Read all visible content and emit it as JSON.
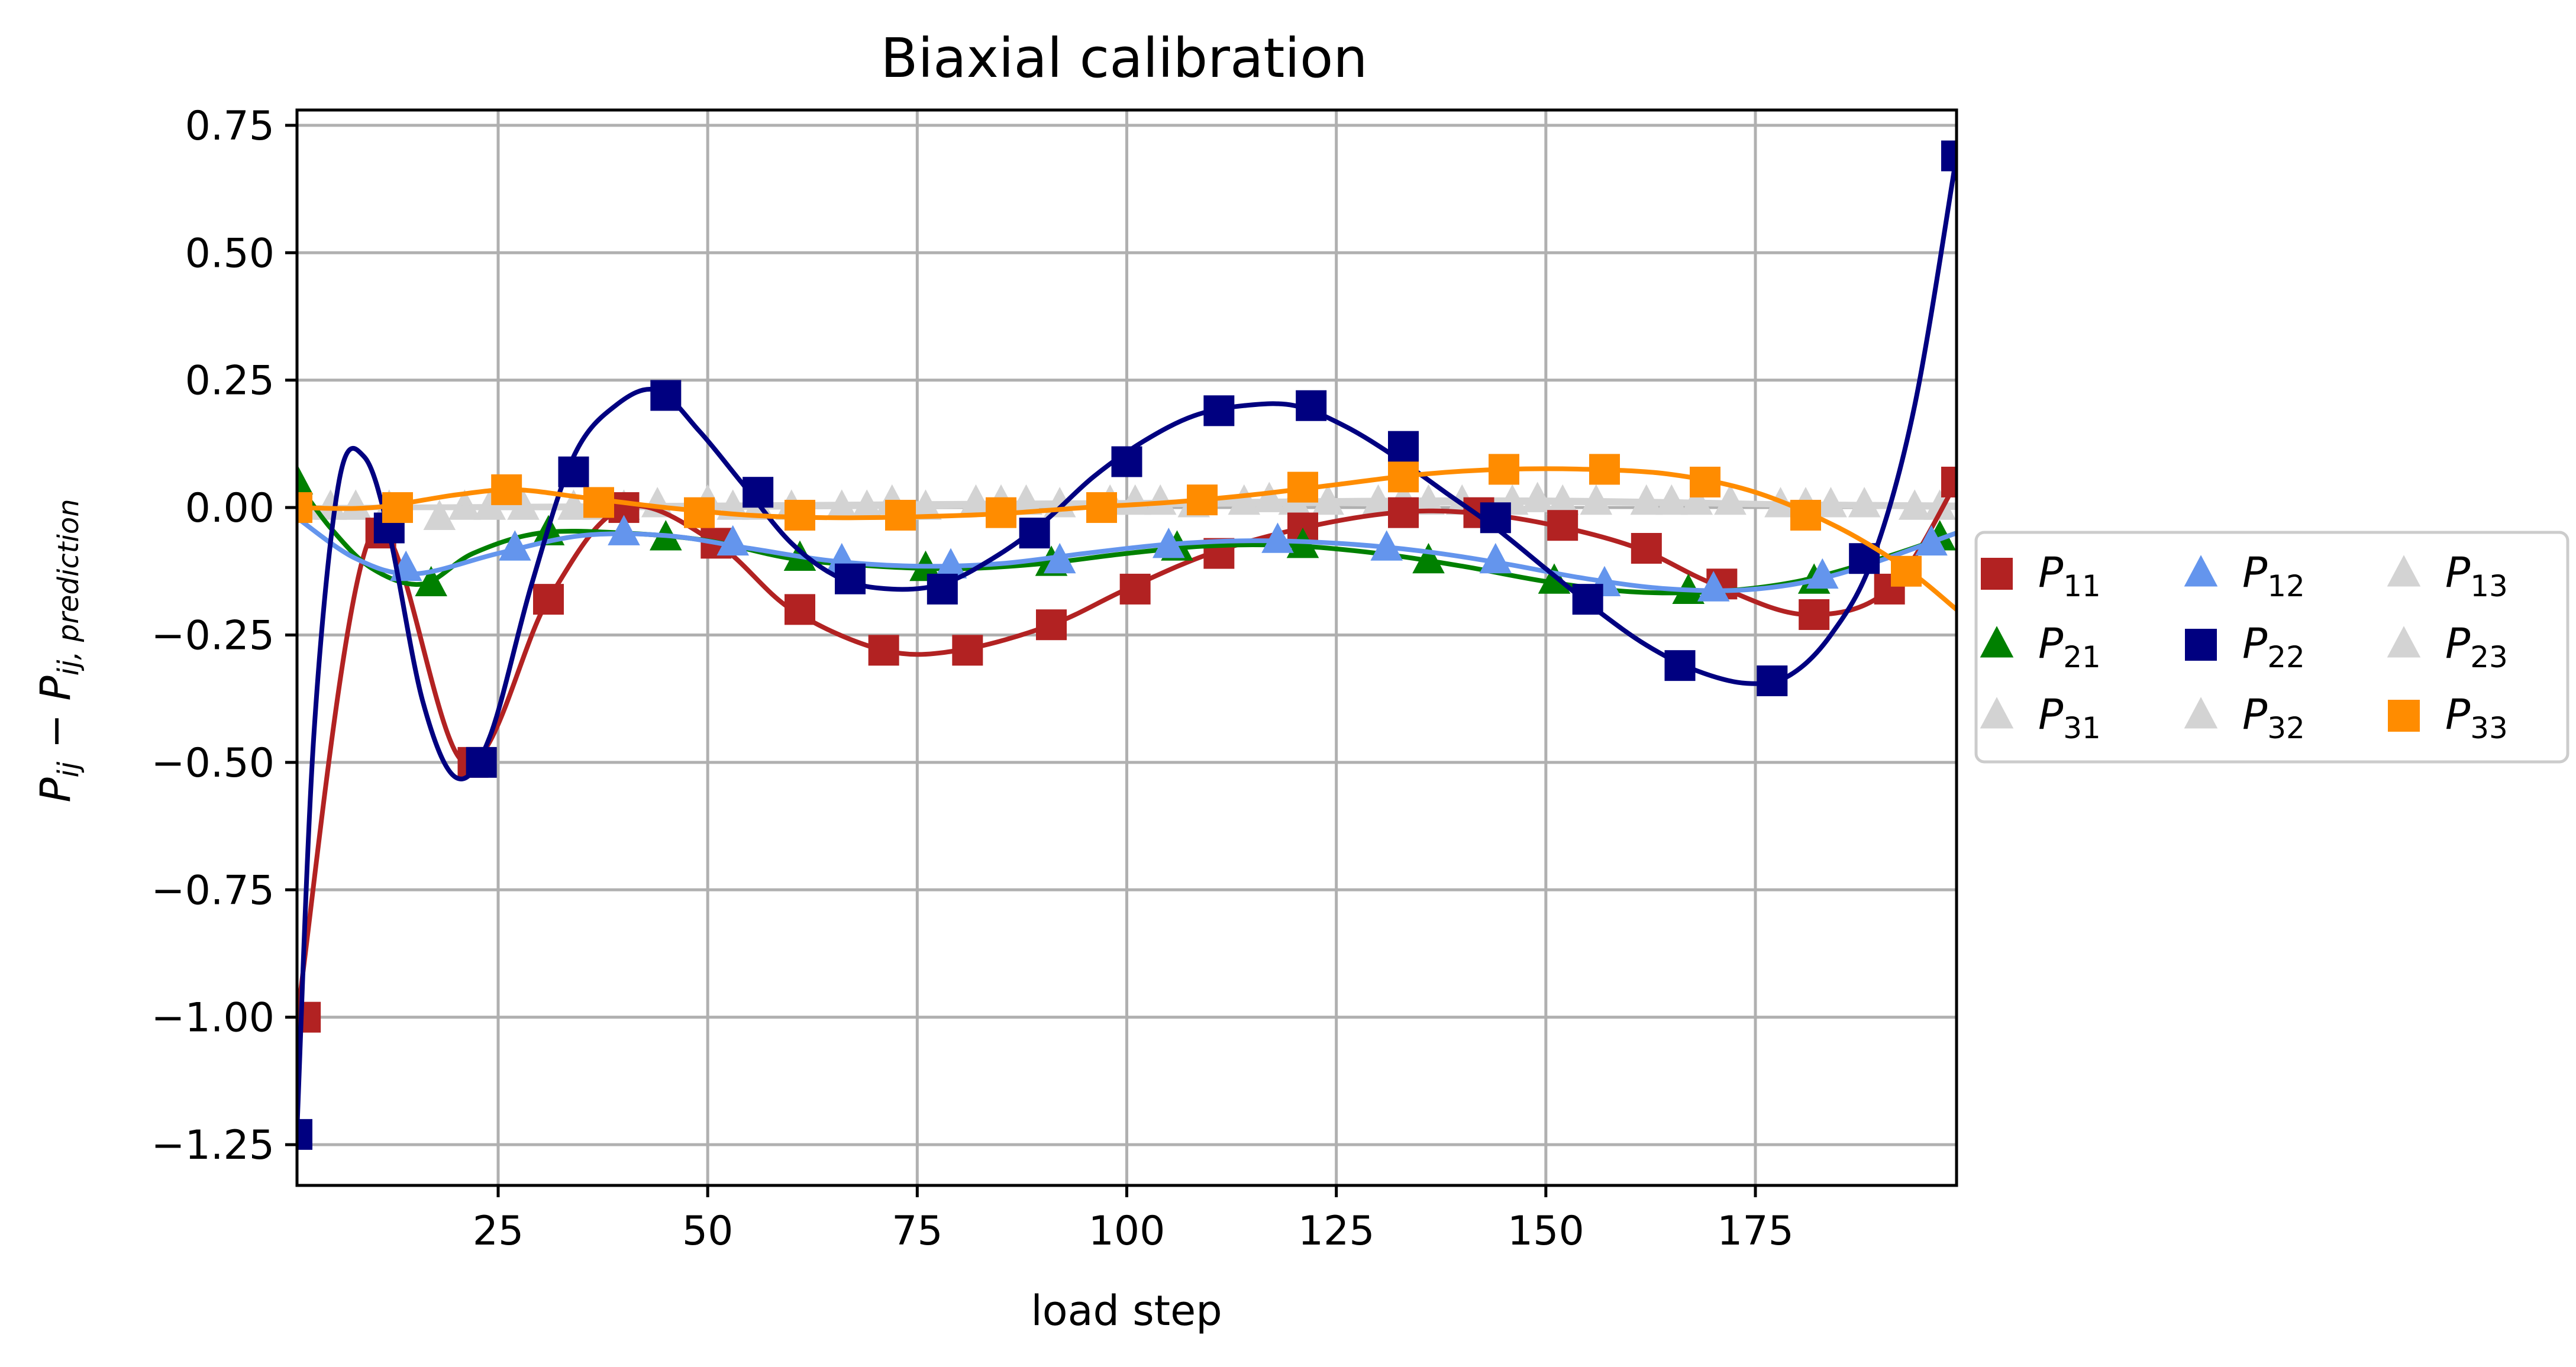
{
  "chart_data": {
    "type": "line",
    "title": "Biaxial calibration",
    "xlabel": "load step",
    "ylabel_base": "P",
    "ylabel_sub1": "ij",
    "ylabel_minus": " − ",
    "ylabel_sub2": "ij, prediction",
    "xlim": [
      1,
      199
    ],
    "ylim": [
      -1.33,
      0.78
    ],
    "xticks": [
      25,
      50,
      75,
      100,
      125,
      150,
      175
    ],
    "yticks": [
      0.75,
      0.5,
      0.25,
      0.0,
      -0.25,
      -0.5,
      -0.75,
      -1.0,
      -1.25
    ],
    "xtick_labels": [
      "25",
      "50",
      "75",
      "100",
      "125",
      "150",
      "175"
    ],
    "ytick_labels": [
      "0.75",
      "0.50",
      "0.25",
      "0.00",
      "−0.25",
      "−0.50",
      "−0.75",
      "−1.00",
      "−1.25"
    ],
    "grid": true,
    "legend_placement": "outside-right",
    "series": [
      {
        "name": "P",
        "sub": "11",
        "color": "#b22222",
        "marker": "square",
        "x": [
          1,
          10,
          21,
          31,
          40,
          51,
          60,
          71,
          80,
          91,
          100,
          110,
          121,
          132,
          141,
          151,
          161,
          170,
          181,
          191,
          199
        ],
        "y": [
          -1.0,
          -0.05,
          -0.5,
          -0.18,
          0.0,
          -0.07,
          -0.2,
          -0.28,
          -0.28,
          -0.23,
          -0.16,
          -0.09,
          -0.04,
          -0.01,
          -0.01,
          -0.035,
          -0.08,
          -0.15,
          -0.21,
          -0.16,
          0.05
        ],
        "markers_x": [
          2,
          11,
          22,
          31,
          40,
          51,
          61,
          71,
          81,
          91,
          101,
          111,
          121,
          133,
          142,
          152,
          162,
          171,
          182,
          191,
          199
        ],
        "markers_y": [
          -1.0,
          -0.05,
          -0.5,
          -0.18,
          0.0,
          -0.07,
          -0.2,
          -0.28,
          -0.28,
          -0.23,
          -0.16,
          -0.09,
          -0.04,
          -0.01,
          -0.01,
          -0.035,
          -0.08,
          -0.15,
          -0.21,
          -0.16,
          0.05
        ]
      },
      {
        "name": "P",
        "sub": "21",
        "color": "#008000",
        "marker": "triangle",
        "x": [
          1,
          5,
          10,
          16,
          22,
          30,
          40,
          50,
          60,
          70,
          80,
          90,
          100,
          110,
          120,
          130,
          140,
          150,
          160,
          170,
          180,
          190,
          199
        ],
        "y": [
          0.05,
          -0.04,
          -0.12,
          -0.15,
          -0.09,
          -0.05,
          -0.05,
          -0.065,
          -0.1,
          -0.115,
          -0.12,
          -0.11,
          -0.09,
          -0.075,
          -0.075,
          -0.09,
          -0.115,
          -0.145,
          -0.165,
          -0.165,
          -0.145,
          -0.1,
          -0.05
        ],
        "markers_x": [
          1,
          17,
          31,
          45,
          61,
          76,
          91,
          106,
          121,
          136,
          151,
          167,
          182,
          197
        ],
        "markers_y": [
          0.05,
          -0.15,
          -0.05,
          -0.06,
          -0.1,
          -0.12,
          -0.11,
          -0.08,
          -0.075,
          -0.105,
          -0.145,
          -0.165,
          -0.145,
          -0.06
        ]
      },
      {
        "name": "P",
        "sub": "31",
        "color": "#d3d3d3",
        "marker": "triangle",
        "x": [
          1,
          50,
          100,
          150,
          199
        ],
        "y": [
          0.0,
          0.005,
          0.01,
          0.01,
          0.0
        ],
        "markers_x": [
          2,
          18,
          34,
          50,
          66,
          82,
          98,
          114,
          130,
          146,
          162,
          178,
          194
        ],
        "markers_y": [
          0.0,
          -0.02,
          0.0,
          0.01,
          0.0,
          0.01,
          0.01,
          0.01,
          0.01,
          0.01,
          0.01,
          0.005,
          0.0
        ]
      },
      {
        "name": "P",
        "sub": "12",
        "color": "#6495ed",
        "marker": "triangle",
        "x": [
          1,
          8,
          15,
          25,
          35,
          45,
          55,
          65,
          75,
          85,
          95,
          105,
          115,
          125,
          135,
          145,
          155,
          165,
          175,
          185,
          199
        ],
        "y": [
          -0.02,
          -0.1,
          -0.13,
          -0.09,
          -0.055,
          -0.055,
          -0.08,
          -0.105,
          -0.115,
          -0.11,
          -0.09,
          -0.072,
          -0.065,
          -0.07,
          -0.085,
          -0.11,
          -0.14,
          -0.16,
          -0.16,
          -0.13,
          -0.05
        ],
        "markers_x": [
          14,
          27,
          40,
          53,
          66,
          79,
          92,
          105,
          118,
          131,
          144,
          157,
          170,
          183,
          196
        ],
        "markers_y": [
          -0.12,
          -0.08,
          -0.05,
          -0.07,
          -0.105,
          -0.115,
          -0.105,
          -0.075,
          -0.065,
          -0.08,
          -0.105,
          -0.15,
          -0.16,
          -0.135,
          -0.07
        ]
      },
      {
        "name": "P",
        "sub": "22",
        "color": "#000080",
        "marker": "square",
        "x": [
          1,
          3,
          6,
          9,
          12,
          16,
          20,
          24,
          29,
          34,
          39,
          44,
          49,
          54,
          60,
          66,
          72,
          78,
          84,
          90,
          96,
          102,
          108,
          114,
          120,
          126,
          132,
          138,
          144,
          150,
          156,
          162,
          168,
          174,
          179,
          184,
          189,
          194,
          199
        ],
        "y": [
          -1.22,
          -0.45,
          0.05,
          0.1,
          -0.05,
          -0.38,
          -0.53,
          -0.45,
          -0.15,
          0.1,
          0.2,
          0.23,
          0.15,
          0.05,
          -0.07,
          -0.14,
          -0.16,
          -0.15,
          -0.1,
          -0.03,
          0.06,
          0.13,
          0.18,
          0.2,
          0.2,
          0.16,
          0.1,
          0.03,
          -0.04,
          -0.12,
          -0.2,
          -0.27,
          -0.32,
          -0.345,
          -0.33,
          -0.25,
          -0.1,
          0.2,
          0.69
        ],
        "markers_x": [
          1,
          12,
          23,
          34,
          45,
          56,
          67,
          78,
          89,
          100,
          111,
          122,
          133,
          144,
          155,
          166,
          177,
          188,
          199
        ],
        "markers_y": [
          -1.23,
          -0.04,
          -0.5,
          0.07,
          0.22,
          0.03,
          -0.14,
          -0.16,
          -0.05,
          0.09,
          0.19,
          0.2,
          0.12,
          -0.02,
          -0.18,
          -0.31,
          -0.34,
          -0.1,
          0.69
        ]
      },
      {
        "name": "P",
        "sub": "32",
        "color": "#d3d3d3",
        "marker": "triangle",
        "x": [
          1,
          50,
          100,
          150,
          199
        ],
        "y": [
          0.0,
          0.0,
          0.005,
          0.01,
          0.005
        ],
        "markers_x": [
          8,
          24,
          40,
          56,
          72,
          88,
          104,
          120,
          136,
          152,
          168,
          184
        ],
        "markers_y": [
          0.0,
          0.0,
          0.0,
          0.0,
          0.01,
          0.01,
          0.01,
          0.01,
          0.01,
          0.01,
          0.01,
          0.005
        ]
      },
      {
        "name": "P",
        "sub": "13",
        "color": "#d3d3d3",
        "marker": "triangle",
        "x": [
          1,
          50,
          100,
          150,
          199
        ],
        "y": [
          0.0,
          0.0,
          0.01,
          0.015,
          0.0
        ],
        "markers_x": [
          5,
          21,
          37,
          53,
          69,
          85,
          101,
          117,
          133,
          149,
          165,
          181,
          197
        ],
        "markers_y": [
          0.0,
          0.0,
          0.0,
          0.0,
          0.0,
          0.01,
          0.01,
          0.015,
          0.015,
          0.015,
          0.01,
          0.005,
          0.0
        ]
      },
      {
        "name": "P",
        "sub": "23",
        "color": "#d3d3d3",
        "marker": "triangle",
        "x": [
          1,
          50,
          100,
          150,
          199
        ],
        "y": [
          0.0,
          0.0,
          0.005,
          0.01,
          0.005
        ],
        "markers_x": [
          12,
          28,
          44,
          60,
          76,
          92,
          108,
          124,
          140,
          156,
          172,
          188
        ],
        "markers_y": [
          0.0,
          0.0,
          0.005,
          0.0,
          0.0,
          0.005,
          0.005,
          0.01,
          0.01,
          0.01,
          0.01,
          0.005
        ]
      },
      {
        "name": "P",
        "sub": "33",
        "color": "#ff8c00",
        "marker": "square",
        "x": [
          1,
          10,
          20,
          27,
          35,
          45,
          55,
          65,
          75,
          85,
          95,
          105,
          115,
          125,
          135,
          145,
          155,
          165,
          175,
          185,
          193,
          199
        ],
        "y": [
          0.0,
          0.0,
          0.025,
          0.035,
          0.02,
          0.0,
          -0.015,
          -0.02,
          -0.018,
          -0.012,
          0.0,
          0.01,
          0.025,
          0.045,
          0.065,
          0.075,
          0.075,
          0.065,
          0.03,
          -0.04,
          -0.12,
          -0.2
        ],
        "markers_x": [
          1,
          13,
          26,
          37,
          49,
          61,
          73,
          85,
          97,
          109,
          121,
          133,
          145,
          157,
          169,
          181,
          193
        ],
        "markers_y": [
          0.0,
          0.0,
          0.035,
          0.01,
          -0.01,
          -0.015,
          -0.015,
          -0.01,
          0.0,
          0.015,
          0.04,
          0.06,
          0.075,
          0.075,
          0.05,
          -0.015,
          -0.125
        ]
      }
    ]
  }
}
